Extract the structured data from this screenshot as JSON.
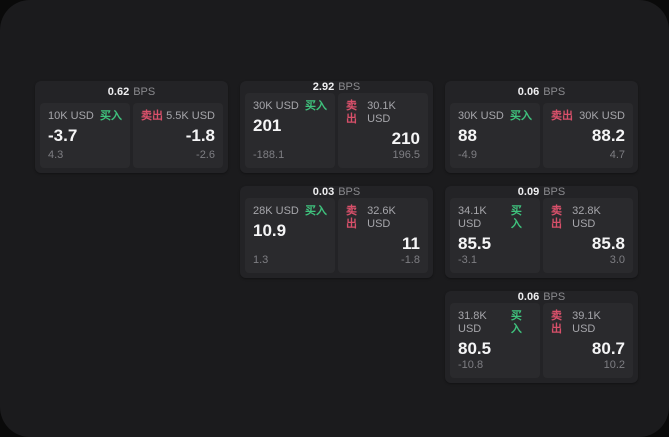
{
  "labels": {
    "bps": "BPS",
    "buy": "买入",
    "sell": "卖出"
  },
  "colors": {
    "buy_green": "#3fc27d",
    "sell_red": "#d8506a",
    "panel_bg": "#1b1b1d",
    "card_bg": "#232326",
    "cell_bg": "#2a2a2d"
  },
  "cards": [
    {
      "spread_bps": "0.62",
      "buy": {
        "size": "10K USD",
        "price": "-3.7",
        "delta": "4.3"
      },
      "sell": {
        "size": "5.5K USD",
        "price": "-1.8",
        "delta": "-2.6"
      }
    },
    {
      "spread_bps": "2.92",
      "buy": {
        "size": "30K USD",
        "price": "201",
        "delta": "-188.1"
      },
      "sell": {
        "size": "30.1K USD",
        "price": "210",
        "delta": "196.5"
      }
    },
    {
      "spread_bps": "0.06",
      "buy": {
        "size": "30K USD",
        "price": "88",
        "delta": "-4.9"
      },
      "sell": {
        "size": "30K USD",
        "price": "88.2",
        "delta": "4.7"
      }
    },
    {
      "spread_bps": "0.03",
      "buy": {
        "size": "28K USD",
        "price": "10.9",
        "delta": "1.3"
      },
      "sell": {
        "size": "32.6K USD",
        "price": "11",
        "delta": "-1.8"
      }
    },
    {
      "spread_bps": "0.09",
      "buy": {
        "size": "34.1K USD",
        "price": "85.5",
        "delta": "-3.1"
      },
      "sell": {
        "size": "32.8K USD",
        "price": "85.8",
        "delta": "3.0"
      }
    },
    {
      "spread_bps": "0.06",
      "buy": {
        "size": "31.8K USD",
        "price": "80.5",
        "delta": "-10.8"
      },
      "sell": {
        "size": "39.1K USD",
        "price": "80.7",
        "delta": "10.2"
      }
    }
  ]
}
